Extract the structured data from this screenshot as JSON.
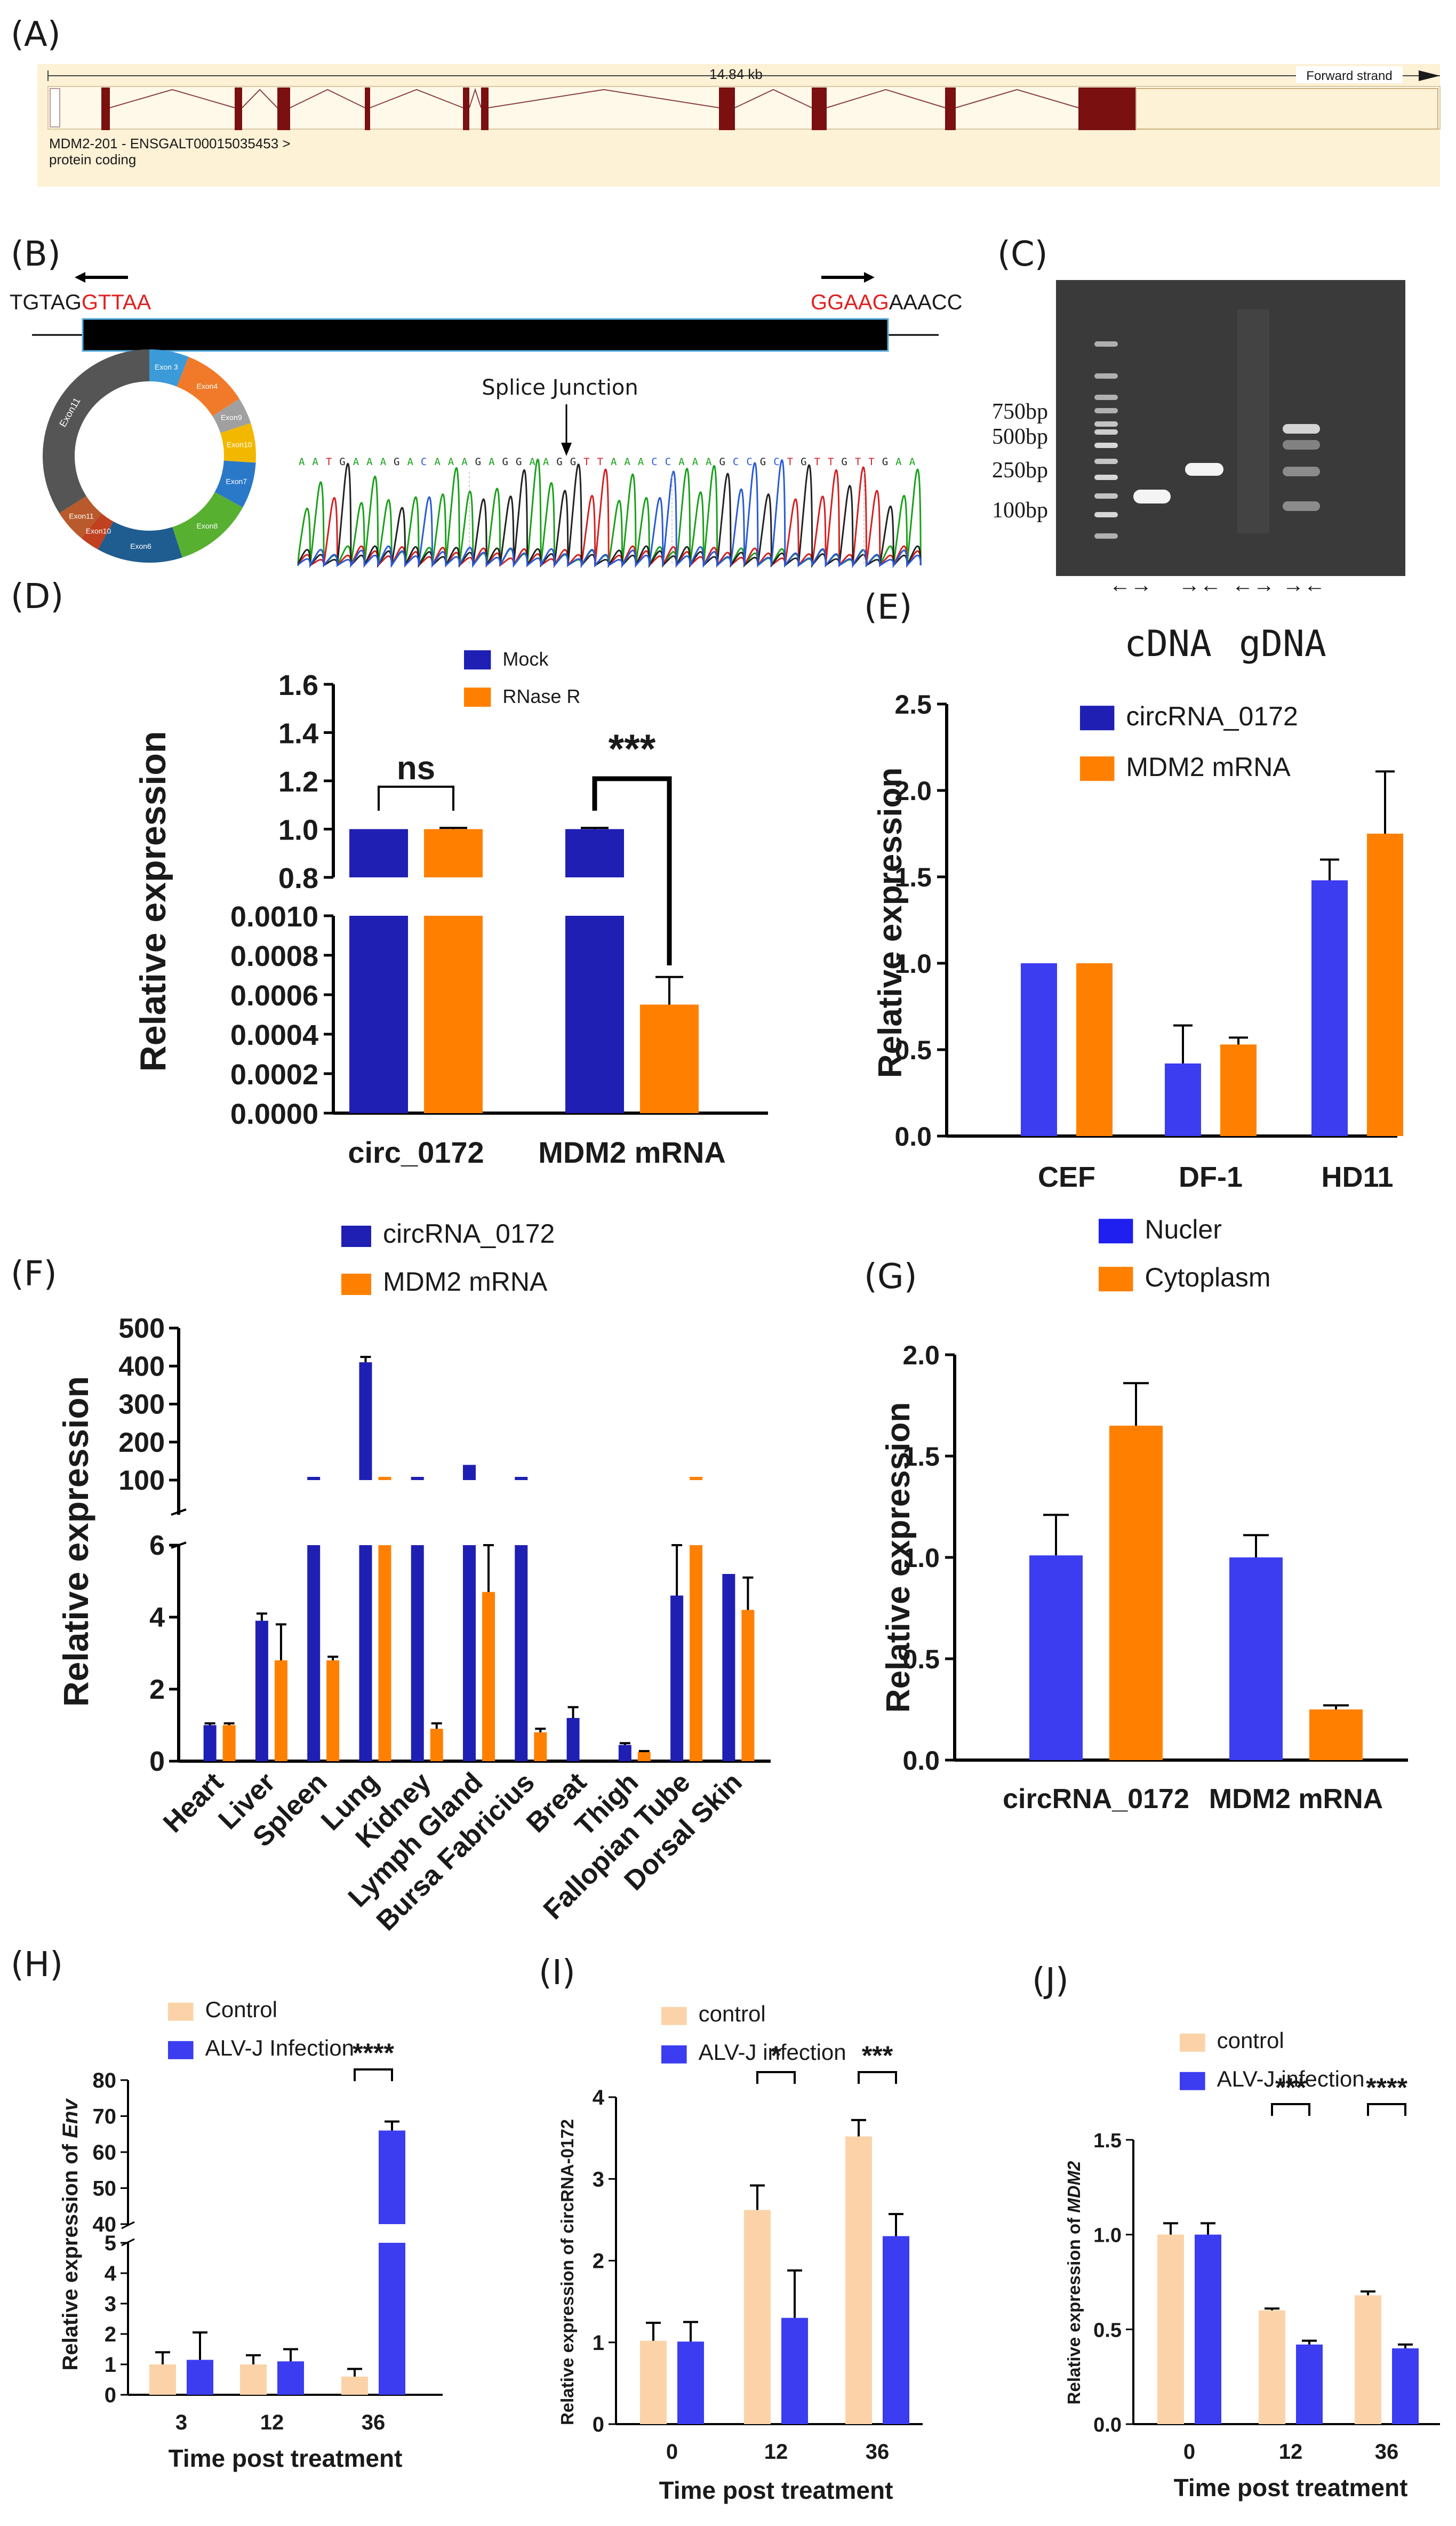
{
  "colors": {
    "navy": "#1f1fb4",
    "blue": "#3c3cf0",
    "orange": "#ff8000",
    "peach": "#fcd3a8",
    "exon": "#7a1010",
    "gene_band": "#fdf1d6",
    "red_seq": "#e02020",
    "gel_bg": "#3a3a3a",
    "text": "#1a1a1a"
  },
  "panel_labels": [
    "(A)",
    "(B)",
    "(C)",
    "(D)",
    "(E)",
    "(F)",
    "(G)",
    "(H)",
    "(I)",
    "(J)"
  ],
  "panelA": {
    "length_label": "14.84 kb",
    "strand_label": "Forward strand",
    "transcript_label": "MDM2-201 - ENSGALT00015035453 >",
    "biotype_label": "protein coding"
  },
  "panelB": {
    "seq_left_black": "TGTAG",
    "seq_left_red": "GTTAA",
    "seq_right_red": "GGAAG",
    "seq_right_black": "AAACC",
    "junction_label": "Splice Junction",
    "sequence_read": "AATGAAAGACAAAGAGGAAGGTTAAACCAAAGCCGCTGTTGTTGAA",
    "exon_labels": [
      "Exon 3",
      "Exon4",
      "Exon5",
      "Exon6",
      "Exon7",
      "Exon8",
      "Exon9",
      "Exon10",
      "Exon11"
    ]
  },
  "panelC": {
    "marker_labels": [
      "750bp",
      "500bp",
      "250bp",
      "100bp"
    ],
    "template_labels": [
      "cDNA",
      "gDNA"
    ],
    "primer_arrows": [
      "←→",
      "→←",
      "←→",
      "→←"
    ]
  },
  "chart_data": [
    {
      "id": "D",
      "type": "bar",
      "broken_axis": true,
      "categories": [
        "circ_0172",
        "MDM2 mRNA"
      ],
      "series": [
        {
          "name": "Mock",
          "values": [
            1.0,
            1.0
          ],
          "errors": [
            0,
            0.005
          ]
        },
        {
          "name": "RNase R",
          "values": [
            1.0,
            0.00055
          ],
          "errors": [
            0.005,
            0.00014
          ]
        }
      ],
      "ylabel": "Relative expression",
      "upper_ticks": [
        "1.6",
        "1.4",
        "1.2",
        "1.0",
        "0.8"
      ],
      "lower_ticks": [
        "0.0010",
        "0.0008",
        "0.0006",
        "0.0004",
        "0.0002",
        "0.0000"
      ],
      "significance": [
        "ns",
        "***"
      ]
    },
    {
      "id": "E",
      "type": "bar",
      "categories": [
        "CEF",
        "DF-1",
        "HD11"
      ],
      "series": [
        {
          "name": "circRNA_0172",
          "values": [
            1.0,
            0.42,
            1.48
          ],
          "errors": [
            0,
            0.22,
            0.12
          ]
        },
        {
          "name": "MDM2 mRNA",
          "values": [
            1.0,
            0.53,
            1.75
          ],
          "errors": [
            0,
            0.04,
            0.36
          ]
        }
      ],
      "ylabel": "Relative expression",
      "ylim": [
        0,
        2.5
      ],
      "ticks": [
        "0.0",
        "0.5",
        "1.0",
        "1.5",
        "2.0",
        "2.5"
      ]
    },
    {
      "id": "F",
      "type": "bar",
      "broken_axis": true,
      "categories": [
        "Heart",
        "Liver",
        "Spleen",
        "Lung",
        "Kidney",
        "Lymph Gland",
        "Bursa Fabricius",
        "Breat",
        "Thigh",
        "Fallopian Tube",
        "Dorsal Skin"
      ],
      "series": [
        {
          "name": "circRNA_0172",
          "values": [
            1.0,
            3.9,
            8,
            410,
            12,
            140,
            12,
            1.2,
            0.45,
            4.6,
            5.2
          ],
          "errors": [
            0.05,
            0.2,
            0,
            10,
            0,
            0,
            0,
            0.3,
            0.05,
            1.5,
            0
          ]
        },
        {
          "name": "MDM2 mRNA",
          "values": [
            1.0,
            2.8,
            2.8,
            7,
            0.9,
            4.7,
            0.8,
            0,
            0.25,
            8,
            4.2
          ],
          "errors": [
            0.05,
            1.0,
            0.1,
            0,
            0.15,
            1.3,
            0.1,
            0,
            0.03,
            0,
            0.9
          ]
        }
      ],
      "ylabel": "Relative expression",
      "upper_ticks": [
        "500",
        "400",
        "300",
        "200",
        "100"
      ],
      "lower_ticks": [
        "6",
        "4",
        "2",
        "0"
      ]
    },
    {
      "id": "G",
      "type": "bar",
      "categories": [
        "circRNA_0172",
        "MDM2 mRNA"
      ],
      "series": [
        {
          "name": "Nucler",
          "values": [
            1.01,
            1.0
          ],
          "errors": [
            0.2,
            0.11
          ]
        },
        {
          "name": "Cytoplasm",
          "values": [
            1.65,
            0.25
          ],
          "errors": [
            0.21,
            0.02
          ]
        }
      ],
      "ylabel": "Relative expression",
      "ylim": [
        0,
        2.0
      ],
      "ticks": [
        "0.0",
        "0.5",
        "1.0",
        "1.5",
        "2.0"
      ]
    },
    {
      "id": "H",
      "type": "bar",
      "broken_axis": true,
      "categories": [
        "3",
        "12",
        "36"
      ],
      "series": [
        {
          "name": "Control",
          "values": [
            1.0,
            1.0,
            0.6
          ],
          "errors": [
            0.4,
            0.3,
            0.25
          ]
        },
        {
          "name": "ALV-J Infection",
          "values": [
            1.15,
            1.1,
            66
          ],
          "errors": [
            0.9,
            0.4,
            2.5
          ]
        }
      ],
      "xlabel": "Time post treatment",
      "ylabel_pre": "Relative expression of ",
      "ylabel_em": "Env",
      "upper_ticks": [
        "80",
        "70",
        "60",
        "50",
        "40"
      ],
      "lower_ticks": [
        "5",
        "4",
        "3",
        "2",
        "1",
        "0"
      ],
      "significance": [
        "",
        "",
        "****"
      ]
    },
    {
      "id": "I",
      "type": "bar",
      "categories": [
        "0",
        "12",
        "36"
      ],
      "series": [
        {
          "name": "control",
          "values": [
            1.02,
            2.62,
            3.52
          ],
          "errors": [
            0.22,
            0.3,
            0.2
          ]
        },
        {
          "name": "ALV-J infection",
          "values": [
            1.01,
            1.3,
            2.3
          ],
          "errors": [
            0.24,
            0.58,
            0.27
          ]
        }
      ],
      "xlabel": "Time post treatment",
      "ylabel": "Relative expression of circRNA-0172",
      "ylim": [
        0,
        4
      ],
      "ticks": [
        "0",
        "1",
        "2",
        "3",
        "4"
      ],
      "significance": [
        "",
        "*",
        "***"
      ]
    },
    {
      "id": "J",
      "type": "bar",
      "categories": [
        "0",
        "12",
        "36"
      ],
      "series": [
        {
          "name": "control",
          "values": [
            1.0,
            0.6,
            0.68
          ],
          "errors": [
            0.06,
            0.01,
            0.02
          ]
        },
        {
          "name": "ALV-J infection",
          "values": [
            1.0,
            0.42,
            0.4
          ],
          "errors": [
            0.06,
            0.02,
            0.02
          ]
        }
      ],
      "xlabel": "Time post treatment",
      "ylabel_pre": "Relative expression of ",
      "ylabel_em": "MDM2",
      "ylim": [
        0,
        1.5
      ],
      "ticks": [
        "0.0",
        "0.5",
        "1.0",
        "1.5"
      ],
      "significance": [
        "",
        "***",
        "****"
      ]
    }
  ]
}
